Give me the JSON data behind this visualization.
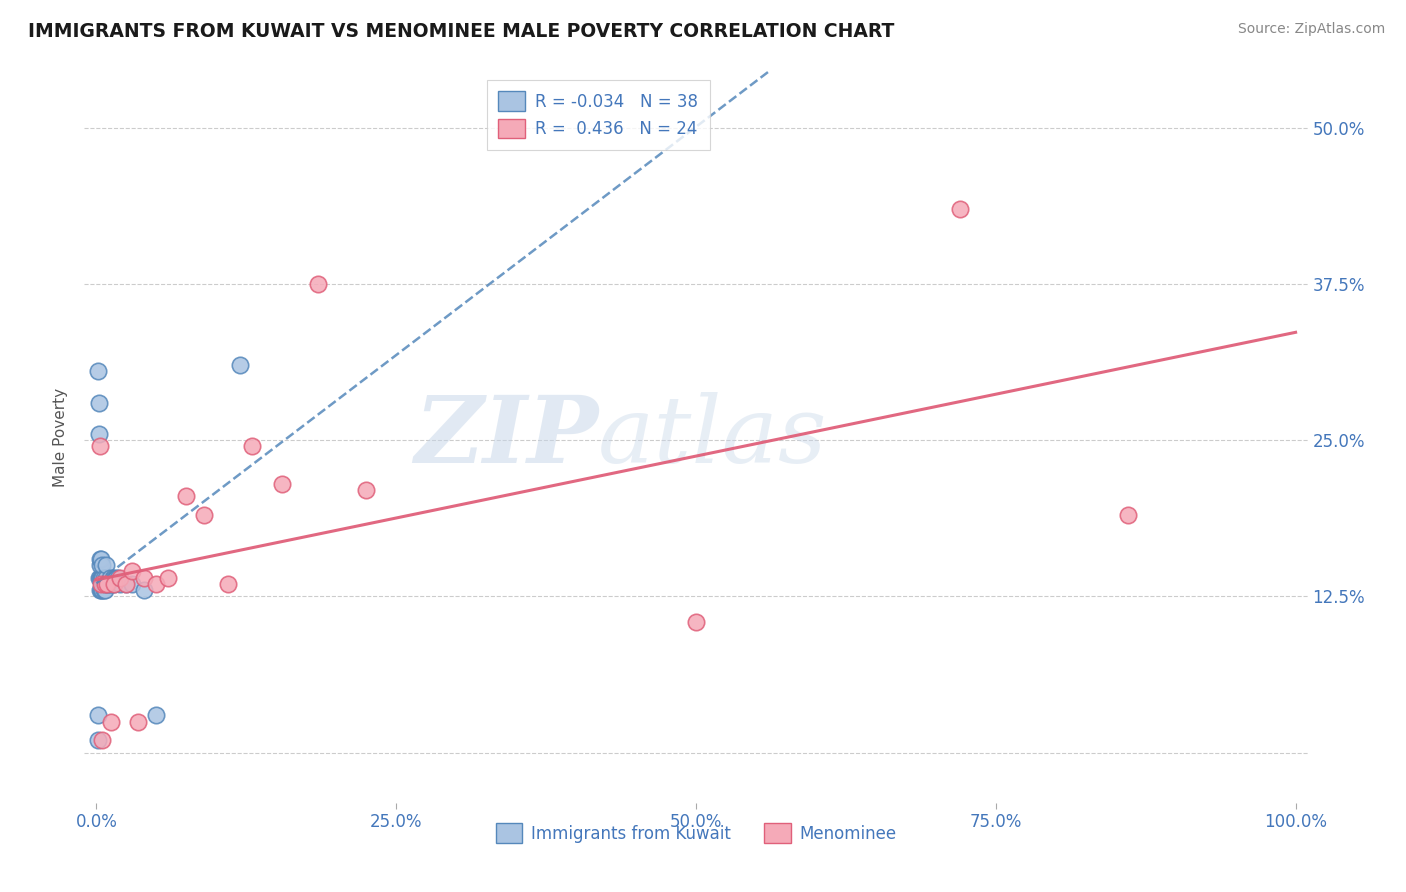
{
  "title": "IMMIGRANTS FROM KUWAIT VS MENOMINEE MALE POVERTY CORRELATION CHART",
  "source": "Source: ZipAtlas.com",
  "ylabel": "Male Poverty",
  "legend_label1": "Immigrants from Kuwait",
  "legend_label2": "Menominee",
  "R1": -0.034,
  "N1": 38,
  "R2": 0.436,
  "N2": 24,
  "blue_color": "#aac4e2",
  "pink_color": "#f5aab8",
  "blue_line_color": "#5588bb",
  "pink_line_color": "#e0607a",
  "xlim": [
    -0.01,
    1.01
  ],
  "ylim": [
    -0.04,
    0.545
  ],
  "yticks": [
    0.0,
    0.125,
    0.25,
    0.375,
    0.5
  ],
  "ytick_labels": [
    "",
    "12.5%",
    "25.0%",
    "37.5%",
    "50.0%"
  ],
  "xticks": [
    0.0,
    0.25,
    0.5,
    0.75,
    1.0
  ],
  "xtick_labels": [
    "0.0%",
    "25.0%",
    "50.0%",
    "75.0%",
    "100.0%"
  ],
  "watermark_zip": "ZIP",
  "watermark_atlas": "atlas",
  "blue_dots_x": [
    0.001,
    0.001,
    0.002,
    0.002,
    0.003,
    0.003,
    0.003,
    0.003,
    0.004,
    0.004,
    0.004,
    0.005,
    0.005,
    0.005,
    0.005,
    0.006,
    0.006,
    0.007,
    0.007,
    0.008,
    0.008,
    0.009,
    0.01,
    0.011,
    0.012,
    0.013,
    0.014,
    0.015,
    0.016,
    0.018,
    0.02,
    0.025,
    0.03,
    0.04,
    0.05,
    0.12,
    0.002,
    0.001
  ],
  "blue_dots_y": [
    0.03,
    0.01,
    0.14,
    0.255,
    0.13,
    0.14,
    0.15,
    0.155,
    0.13,
    0.14,
    0.155,
    0.13,
    0.14,
    0.14,
    0.15,
    0.13,
    0.14,
    0.13,
    0.135,
    0.14,
    0.15,
    0.135,
    0.135,
    0.14,
    0.135,
    0.135,
    0.14,
    0.135,
    0.14,
    0.14,
    0.135,
    0.135,
    0.135,
    0.13,
    0.03,
    0.31,
    0.28,
    0.305
  ],
  "pink_dots_x": [
    0.003,
    0.004,
    0.005,
    0.007,
    0.009,
    0.012,
    0.015,
    0.02,
    0.025,
    0.03,
    0.035,
    0.04,
    0.05,
    0.06,
    0.075,
    0.09,
    0.11,
    0.13,
    0.155,
    0.185,
    0.225,
    0.5,
    0.72,
    0.86
  ],
  "pink_dots_y": [
    0.245,
    0.135,
    0.01,
    0.135,
    0.135,
    0.025,
    0.135,
    0.14,
    0.135,
    0.145,
    0.025,
    0.14,
    0.135,
    0.14,
    0.205,
    0.19,
    0.135,
    0.245,
    0.215,
    0.375,
    0.21,
    0.105,
    0.435,
    0.19
  ]
}
